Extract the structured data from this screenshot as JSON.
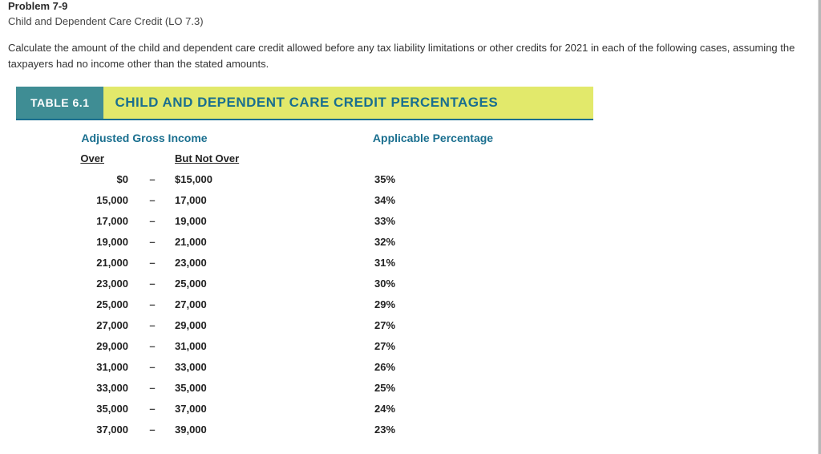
{
  "problem": {
    "number": "Problem 7-9",
    "subtitle": "Child and Dependent Care Credit (LO 7.3)",
    "description": "Calculate the amount of the child and dependent care credit allowed before any tax liability limitations or other credits for 2021 in each of the following cases, assuming the taxpayers had no income other than the stated amounts."
  },
  "table": {
    "badge": "TABLE 6.1",
    "title": "CHILD AND DEPENDENT CARE CREDIT PERCENTAGES",
    "col_left": "Adjusted Gross Income",
    "col_right": "Applicable Percentage",
    "sub_over": "Over",
    "sub_notover": "But Not Over",
    "rows": [
      {
        "over": "$0",
        "notover": "$15,000",
        "pct": "35%"
      },
      {
        "over": "15,000",
        "notover": "17,000",
        "pct": "34%"
      },
      {
        "over": "17,000",
        "notover": "19,000",
        "pct": "33%"
      },
      {
        "over": "19,000",
        "notover": "21,000",
        "pct": "32%"
      },
      {
        "over": "21,000",
        "notover": "23,000",
        "pct": "31%"
      },
      {
        "over": "23,000",
        "notover": "25,000",
        "pct": "30%"
      },
      {
        "over": "25,000",
        "notover": "27,000",
        "pct": "29%"
      },
      {
        "over": "27,000",
        "notover": "29,000",
        "pct": "27%"
      },
      {
        "over": "29,000",
        "notover": "31,000",
        "pct": "27%"
      },
      {
        "over": "31,000",
        "notover": "33,000",
        "pct": "26%"
      },
      {
        "over": "33,000",
        "notover": "35,000",
        "pct": "25%"
      },
      {
        "over": "35,000",
        "notover": "37,000",
        "pct": "24%"
      },
      {
        "over": "37,000",
        "notover": "39,000",
        "pct": "23%"
      }
    ]
  },
  "colors": {
    "badge_bg": "#3f8d94",
    "title_bg": "#e2e96b",
    "title_fg": "#1a6f8f",
    "rule": "#1a6f8f"
  }
}
